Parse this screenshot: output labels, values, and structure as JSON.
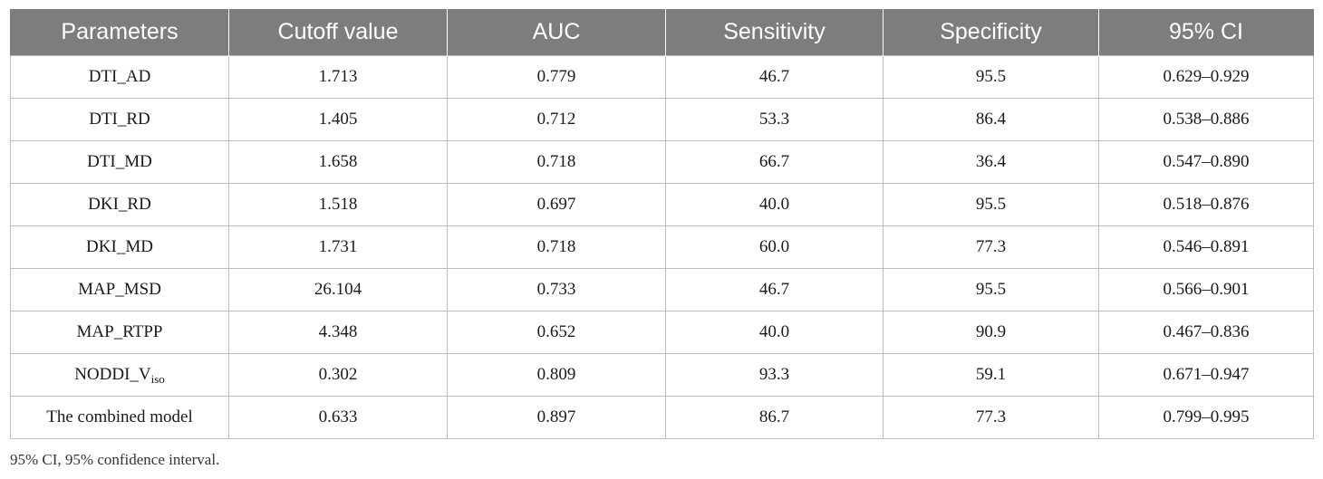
{
  "table": {
    "headers": [
      "Parameters",
      "Cutoff value",
      "AUC",
      "Sensitivity",
      "Specificity",
      "95% CI"
    ],
    "rows": [
      {
        "parameter": "DTI_AD",
        "cutoff": "1.713",
        "auc": "0.779",
        "sensitivity": "46.7",
        "specificity": "95.5",
        "ci": "0.629–0.929"
      },
      {
        "parameter": "DTI_RD",
        "cutoff": "1.405",
        "auc": "0.712",
        "sensitivity": "53.3",
        "specificity": "86.4",
        "ci": "0.538–0.886"
      },
      {
        "parameter": "DTI_MD",
        "cutoff": "1.658",
        "auc": "0.718",
        "sensitivity": "66.7",
        "specificity": "36.4",
        "ci": "0.547–0.890"
      },
      {
        "parameter": "DKI_RD",
        "cutoff": "1.518",
        "auc": "0.697",
        "sensitivity": "40.0",
        "specificity": "95.5",
        "ci": "0.518–0.876"
      },
      {
        "parameter": "DKI_MD",
        "cutoff": "1.731",
        "auc": "0.718",
        "sensitivity": "60.0",
        "specificity": "77.3",
        "ci": "0.546–0.891"
      },
      {
        "parameter": "MAP_MSD",
        "cutoff": "26.104",
        "auc": "0.733",
        "sensitivity": "46.7",
        "specificity": "95.5",
        "ci": "0.566–0.901"
      },
      {
        "parameter": "MAP_RTPP",
        "cutoff": "4.348",
        "auc": "0.652",
        "sensitivity": "40.0",
        "specificity": "90.9",
        "ci": "0.467–0.836"
      },
      {
        "parameter": "NODDI_V",
        "parameter_sub": "iso",
        "cutoff": "0.302",
        "auc": "0.809",
        "sensitivity": "93.3",
        "specificity": "59.1",
        "ci": "0.671–0.947"
      },
      {
        "parameter": "The combined model",
        "cutoff": "0.633",
        "auc": "0.897",
        "sensitivity": "86.7",
        "specificity": "77.3",
        "ci": "0.799–0.995"
      }
    ]
  },
  "footnote": "95% CI, 95% confidence interval."
}
